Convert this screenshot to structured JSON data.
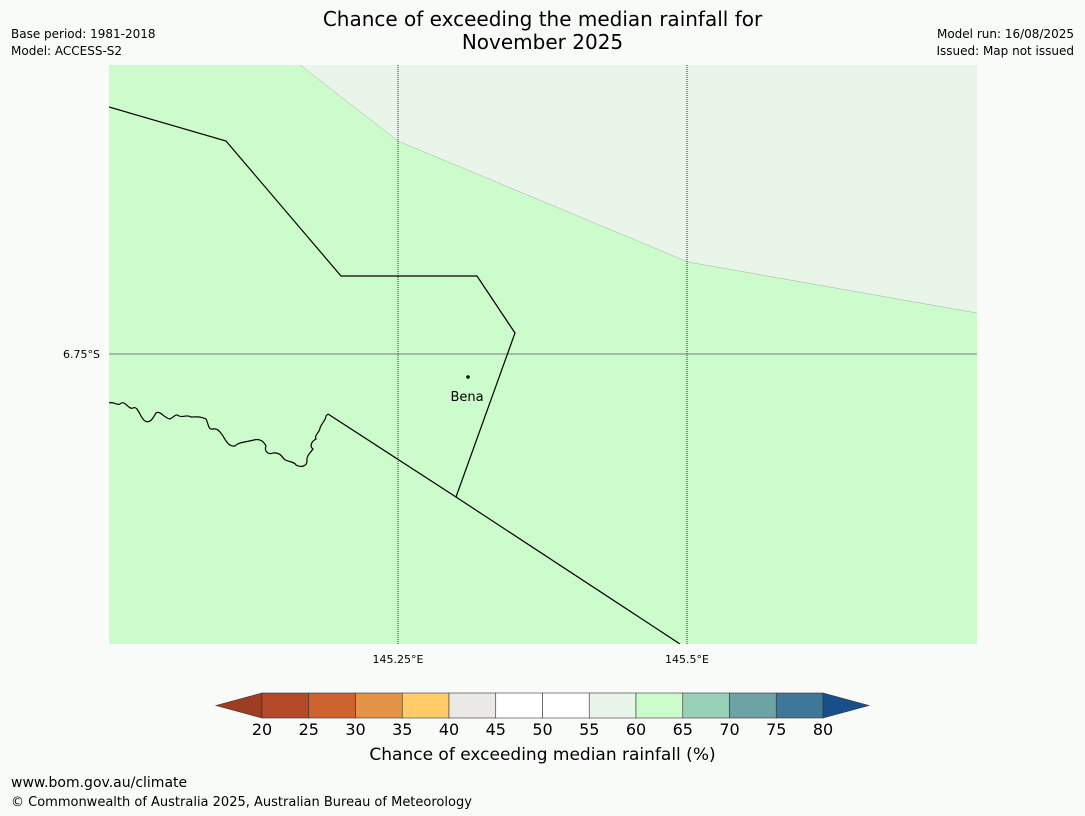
{
  "header": {
    "title_line1": "Chance of exceeding the median rainfall for",
    "title_line2": "November 2025",
    "base_period": "Base period: 1981-2018",
    "model": "Model: ACCESS-S2",
    "model_run": "Model run: 16/08/2025",
    "issued": "Issued: Map not issued"
  },
  "map": {
    "lat_label": "6.75°S",
    "lon_labels": [
      "145.25°E",
      "145.5°E"
    ],
    "place_label": "Bena",
    "colors": {
      "land_60_65": "#ccfccc",
      "land_55_60": "#eaf5ea"
    }
  },
  "colorbar": {
    "ticks": [
      "20",
      "25",
      "30",
      "35",
      "40",
      "45",
      "50",
      "55",
      "60",
      "65",
      "70",
      "75",
      "80"
    ],
    "colors": [
      "#9e3d22",
      "#b5492a",
      "#d0622f",
      "#e49447",
      "#ffcc66",
      "#ebe9e5",
      "#ffffff",
      "#ffffff",
      "#eaf5ea",
      "#ccfccc",
      "#99cfb6",
      "#6ea3a6",
      "#3e7798",
      "#184f8b"
    ],
    "label": "Chance of exceeding median rainfall (%)"
  },
  "footer": {
    "url": "www.bom.gov.au/climate",
    "copyright": "© Commonwealth of Australia 2025, Australian Bureau of Meteorology"
  }
}
